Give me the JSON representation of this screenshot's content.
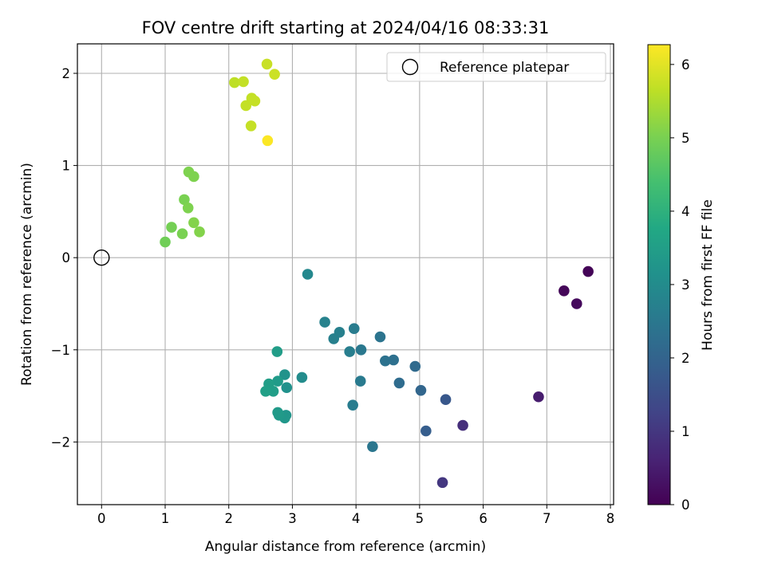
{
  "chart_data": {
    "type": "scatter",
    "title": "FOV centre drift starting at 2024/04/16 08:33:31",
    "xlabel": "Angular distance from reference (arcmin)",
    "ylabel": "Rotation from reference (arcmin)",
    "xlim": [
      -0.38,
      8.05
    ],
    "ylim": [
      -2.68,
      2.32
    ],
    "xticks": [
      0,
      1,
      2,
      3,
      4,
      5,
      6,
      7,
      8
    ],
    "yticks": [
      -2,
      -1,
      0,
      1,
      2
    ],
    "grid": true,
    "legend": {
      "placement": "top-right",
      "entries": [
        "Reference platepar"
      ]
    },
    "reference_point": {
      "x": 0,
      "y": 0,
      "label": "Reference platepar"
    },
    "colorbar": {
      "label": "Hours from first FF file",
      "range": [
        0,
        6.27
      ],
      "ticks": [
        0,
        1,
        2,
        3,
        4,
        5,
        6
      ],
      "colormap": "viridis"
    },
    "points": [
      {
        "x": 7.65,
        "y": -0.15,
        "t": 0.05
      },
      {
        "x": 7.27,
        "y": -0.36,
        "t": 0.1
      },
      {
        "x": 7.47,
        "y": -0.5,
        "t": 0.15
      },
      {
        "x": 6.87,
        "y": -1.51,
        "t": 0.5
      },
      {
        "x": 5.68,
        "y": -1.82,
        "t": 0.85
      },
      {
        "x": 5.36,
        "y": -2.44,
        "t": 1.0
      },
      {
        "x": 5.41,
        "y": -1.54,
        "t": 1.7
      },
      {
        "x": 5.1,
        "y": -1.88,
        "t": 1.85
      },
      {
        "x": 5.02,
        "y": -1.44,
        "t": 2.05
      },
      {
        "x": 4.93,
        "y": -1.18,
        "t": 2.15
      },
      {
        "x": 4.68,
        "y": -1.36,
        "t": 2.2
      },
      {
        "x": 4.59,
        "y": -1.11,
        "t": 2.3
      },
      {
        "x": 4.46,
        "y": -1.12,
        "t": 2.35
      },
      {
        "x": 4.38,
        "y": -0.86,
        "t": 2.4
      },
      {
        "x": 4.26,
        "y": -2.05,
        "t": 2.45
      },
      {
        "x": 4.08,
        "y": -1.0,
        "t": 2.5
      },
      {
        "x": 4.07,
        "y": -1.34,
        "t": 2.55
      },
      {
        "x": 3.97,
        "y": -0.77,
        "t": 2.6
      },
      {
        "x": 3.95,
        "y": -1.6,
        "t": 2.62
      },
      {
        "x": 3.9,
        "y": -1.02,
        "t": 2.65
      },
      {
        "x": 3.74,
        "y": -0.81,
        "t": 2.7
      },
      {
        "x": 3.65,
        "y": -0.88,
        "t": 2.72
      },
      {
        "x": 3.51,
        "y": -0.7,
        "t": 2.75
      },
      {
        "x": 3.24,
        "y": -0.18,
        "t": 2.9
      },
      {
        "x": 3.15,
        "y": -1.3,
        "t": 3.0
      },
      {
        "x": 2.91,
        "y": -1.41,
        "t": 3.15
      },
      {
        "x": 2.88,
        "y": -1.27,
        "t": 3.2
      },
      {
        "x": 2.9,
        "y": -1.71,
        "t": 3.25
      },
      {
        "x": 2.88,
        "y": -1.74,
        "t": 3.3
      },
      {
        "x": 2.79,
        "y": -1.71,
        "t": 3.35
      },
      {
        "x": 2.77,
        "y": -1.68,
        "t": 3.38
      },
      {
        "x": 2.77,
        "y": -1.34,
        "t": 3.4
      },
      {
        "x": 2.76,
        "y": -1.02,
        "t": 3.45
      },
      {
        "x": 2.7,
        "y": -1.45,
        "t": 3.48
      },
      {
        "x": 2.63,
        "y": -1.37,
        "t": 3.5
      },
      {
        "x": 2.58,
        "y": -1.45,
        "t": 3.55
      },
      {
        "x": 1.0,
        "y": 0.17,
        "t": 4.9
      },
      {
        "x": 1.1,
        "y": 0.33,
        "t": 4.95
      },
      {
        "x": 1.27,
        "y": 0.26,
        "t": 5.0
      },
      {
        "x": 1.3,
        "y": 0.63,
        "t": 5.0
      },
      {
        "x": 1.36,
        "y": 0.54,
        "t": 5.05
      },
      {
        "x": 1.37,
        "y": 0.93,
        "t": 5.05
      },
      {
        "x": 1.45,
        "y": 0.88,
        "t": 5.05
      },
      {
        "x": 1.45,
        "y": 0.38,
        "t": 5.1
      },
      {
        "x": 1.54,
        "y": 0.28,
        "t": 5.1
      },
      {
        "x": 2.09,
        "y": 1.9,
        "t": 5.65
      },
      {
        "x": 2.23,
        "y": 1.91,
        "t": 5.7
      },
      {
        "x": 2.27,
        "y": 1.65,
        "t": 5.7
      },
      {
        "x": 2.36,
        "y": 1.73,
        "t": 5.7
      },
      {
        "x": 2.41,
        "y": 1.7,
        "t": 5.72
      },
      {
        "x": 2.35,
        "y": 1.43,
        "t": 5.72
      },
      {
        "x": 2.6,
        "y": 2.1,
        "t": 5.75
      },
      {
        "x": 2.72,
        "y": 1.99,
        "t": 5.78
      },
      {
        "x": 2.61,
        "y": 1.27,
        "t": 6.25
      }
    ]
  }
}
